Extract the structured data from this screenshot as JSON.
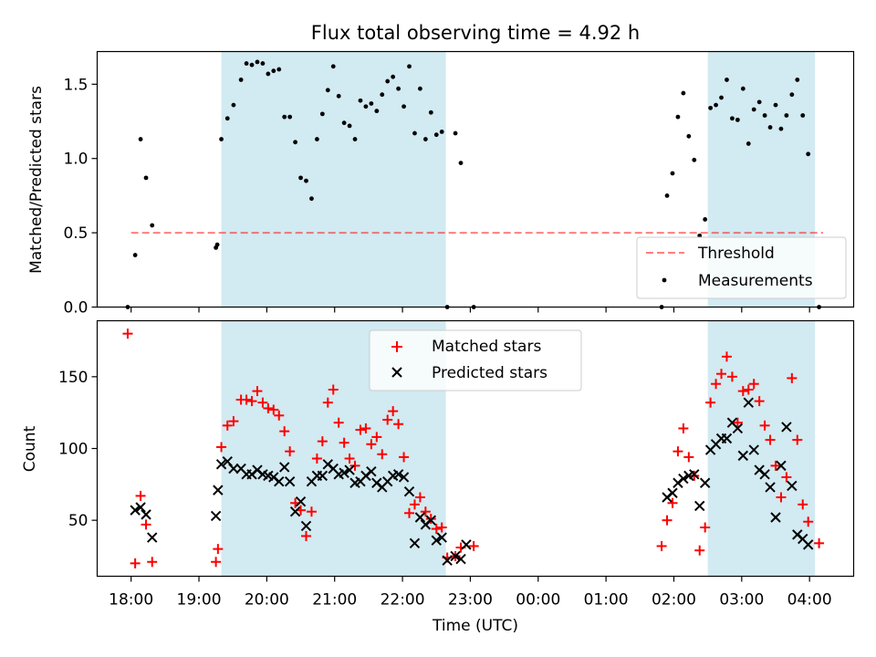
{
  "title": "Flux total observing time = 4.92 h",
  "xlabel": "Time (UTC)",
  "x_tick_labels": [
    "18:00",
    "19:00",
    "20:00",
    "21:00",
    "22:00",
    "23:00",
    "00:00",
    "01:00",
    "02:00",
    "03:00",
    "04:00"
  ],
  "colors": {
    "shade": "#add8e6",
    "threshold": "#ff0000",
    "measurements": "#000000",
    "matched": "#ff0000",
    "predicted": "#000000"
  },
  "chart_data": [
    {
      "type": "scatter",
      "ylabel": "Matched/Predicted stars",
      "ylim": [
        0,
        1.72
      ],
      "y_ticks": [
        0.0,
        0.5,
        1.0,
        1.5
      ],
      "y_tick_labels": [
        "0.0",
        "0.5",
        "1.0",
        "1.5"
      ],
      "x_unit": "hours since 18:00 UTC",
      "xlim": [
        -0.5,
        10.65
      ],
      "shaded_intervals": [
        [
          1.33,
          4.64
        ],
        [
          8.5,
          10.08
        ]
      ],
      "threshold": {
        "name": "Threshold",
        "value": 0.5,
        "x_range": [
          0.0,
          10.2
        ]
      },
      "legend": {
        "position": "lower right",
        "threshold_label": "Threshold",
        "measurements_label": "Measurements"
      },
      "series": [
        {
          "name": "Measurements",
          "points": [
            [
              -0.05,
              0.0
            ],
            [
              0.06,
              0.35
            ],
            [
              0.14,
              1.13
            ],
            [
              0.22,
              0.87
            ],
            [
              0.31,
              0.55
            ],
            [
              1.25,
              0.4
            ],
            [
              1.27,
              0.42
            ],
            [
              1.33,
              1.13
            ],
            [
              1.42,
              1.27
            ],
            [
              1.51,
              1.36
            ],
            [
              1.62,
              1.53
            ],
            [
              1.7,
              1.64
            ],
            [
              1.78,
              1.63
            ],
            [
              1.86,
              1.65
            ],
            [
              1.94,
              1.64
            ],
            [
              2.02,
              1.57
            ],
            [
              2.1,
              1.59
            ],
            [
              2.18,
              1.6
            ],
            [
              2.26,
              1.28
            ],
            [
              2.34,
              1.28
            ],
            [
              2.42,
              1.11
            ],
            [
              2.5,
              0.87
            ],
            [
              2.58,
              0.85
            ],
            [
              2.66,
              0.73
            ],
            [
              2.74,
              1.13
            ],
            [
              2.82,
              1.3
            ],
            [
              2.9,
              1.46
            ],
            [
              2.98,
              1.62
            ],
            [
              3.06,
              1.42
            ],
            [
              3.14,
              1.24
            ],
            [
              3.22,
              1.22
            ],
            [
              3.3,
              1.13
            ],
            [
              3.38,
              1.39
            ],
            [
              3.46,
              1.35
            ],
            [
              3.54,
              1.37
            ],
            [
              3.62,
              1.32
            ],
            [
              3.7,
              1.43
            ],
            [
              3.78,
              1.52
            ],
            [
              3.86,
              1.55
            ],
            [
              3.94,
              1.47
            ],
            [
              4.02,
              1.35
            ],
            [
              4.1,
              1.62
            ],
            [
              4.18,
              1.17
            ],
            [
              4.26,
              1.47
            ],
            [
              4.34,
              1.13
            ],
            [
              4.42,
              1.31
            ],
            [
              4.5,
              1.16
            ],
            [
              4.58,
              1.18
            ],
            [
              4.66,
              0.0
            ],
            [
              4.78,
              1.17
            ],
            [
              4.86,
              0.97
            ],
            [
              5.05,
              0.0
            ],
            [
              7.82,
              0.0
            ],
            [
              7.9,
              0.75
            ],
            [
              7.98,
              0.9
            ],
            [
              8.06,
              1.28
            ],
            [
              8.14,
              1.44
            ],
            [
              8.22,
              1.15
            ],
            [
              8.3,
              0.99
            ],
            [
              8.38,
              0.48
            ],
            [
              8.46,
              0.59
            ],
            [
              8.54,
              1.34
            ],
            [
              8.62,
              1.36
            ],
            [
              8.7,
              1.41
            ],
            [
              8.78,
              1.53
            ],
            [
              8.86,
              1.27
            ],
            [
              8.94,
              1.26
            ],
            [
              9.02,
              1.47
            ],
            [
              9.1,
              1.1
            ],
            [
              9.18,
              1.33
            ],
            [
              9.26,
              1.38
            ],
            [
              9.34,
              1.29
            ],
            [
              9.42,
              1.21
            ],
            [
              9.5,
              1.36
            ],
            [
              9.58,
              1.2
            ],
            [
              9.66,
              1.29
            ],
            [
              9.74,
              1.43
            ],
            [
              9.82,
              1.53
            ],
            [
              9.9,
              1.29
            ],
            [
              9.98,
              1.03
            ],
            [
              10.14,
              0.0
            ]
          ]
        }
      ]
    },
    {
      "type": "scatter",
      "ylabel": "Count",
      "ylim": [
        11,
        189
      ],
      "y_ticks": [
        50,
        100,
        150
      ],
      "y_tick_labels": [
        "50",
        "100",
        "150"
      ],
      "x_unit": "hours since 18:00 UTC",
      "xlim": [
        -0.5,
        10.65
      ],
      "shaded_intervals": [
        [
          1.33,
          4.64
        ],
        [
          8.5,
          10.08
        ]
      ],
      "legend": {
        "position": "upper center",
        "matched_label": "Matched stars",
        "predicted_label": "Predicted stars"
      },
      "series": [
        {
          "name": "Matched stars",
          "marker": "+",
          "points": [
            [
              -0.05,
              180
            ],
            [
              0.06,
              20
            ],
            [
              0.14,
              67
            ],
            [
              0.22,
              47
            ],
            [
              0.31,
              21
            ],
            [
              1.25,
              21
            ],
            [
              1.28,
              30
            ],
            [
              1.33,
              101
            ],
            [
              1.42,
              116
            ],
            [
              1.51,
              119
            ],
            [
              1.62,
              134
            ],
            [
              1.7,
              134
            ],
            [
              1.78,
              133
            ],
            [
              1.86,
              140
            ],
            [
              1.94,
              132
            ],
            [
              2.02,
              128
            ],
            [
              2.1,
              127
            ],
            [
              2.18,
              123
            ],
            [
              2.26,
              112
            ],
            [
              2.34,
              98
            ],
            [
              2.42,
              62
            ],
            [
              2.5,
              57
            ],
            [
              2.58,
              39
            ],
            [
              2.66,
              56
            ],
            [
              2.74,
              93
            ],
            [
              2.82,
              105
            ],
            [
              2.9,
              132
            ],
            [
              2.98,
              141
            ],
            [
              3.06,
              118
            ],
            [
              3.14,
              104
            ],
            [
              3.22,
              93
            ],
            [
              3.3,
              88
            ],
            [
              3.38,
              113
            ],
            [
              3.46,
              114
            ],
            [
              3.54,
              103
            ],
            [
              3.62,
              108
            ],
            [
              3.7,
              96
            ],
            [
              3.78,
              120
            ],
            [
              3.86,
              126
            ],
            [
              3.94,
              117
            ],
            [
              4.02,
              94
            ],
            [
              4.1,
              55
            ],
            [
              4.18,
              61
            ],
            [
              4.26,
              66
            ],
            [
              4.34,
              56
            ],
            [
              4.42,
              51
            ],
            [
              4.5,
              44
            ],
            [
              4.58,
              45
            ],
            [
              4.66,
              24
            ],
            [
              4.78,
              25
            ],
            [
              4.86,
              31
            ],
            [
              5.05,
              32
            ],
            [
              7.82,
              32
            ],
            [
              7.9,
              50
            ],
            [
              7.98,
              62
            ],
            [
              8.06,
              98
            ],
            [
              8.14,
              114
            ],
            [
              8.22,
              94
            ],
            [
              8.3,
              81
            ],
            [
              8.38,
              29
            ],
            [
              8.46,
              45
            ],
            [
              8.54,
              132
            ],
            [
              8.62,
              145
            ],
            [
              8.7,
              152
            ],
            [
              8.78,
              164
            ],
            [
              8.86,
              150
            ],
            [
              8.94,
              118
            ],
            [
              9.02,
              140
            ],
            [
              9.1,
              141
            ],
            [
              9.18,
              145
            ],
            [
              9.26,
              133
            ],
            [
              9.34,
              116
            ],
            [
              9.42,
              106
            ],
            [
              9.5,
              88
            ],
            [
              9.58,
              66
            ],
            [
              9.66,
              80
            ],
            [
              9.74,
              149
            ],
            [
              9.82,
              106
            ],
            [
              9.9,
              61
            ],
            [
              9.98,
              49
            ],
            [
              10.14,
              34
            ]
          ]
        },
        {
          "name": "Predicted stars",
          "marker": "x",
          "points": [
            [
              0.06,
              57
            ],
            [
              0.14,
              59
            ],
            [
              0.22,
              54
            ],
            [
              0.31,
              38
            ],
            [
              1.25,
              53
            ],
            [
              1.28,
              71
            ],
            [
              1.33,
              89
            ],
            [
              1.42,
              91
            ],
            [
              1.51,
              86
            ],
            [
              1.62,
              86
            ],
            [
              1.7,
              82
            ],
            [
              1.78,
              82
            ],
            [
              1.86,
              85
            ],
            [
              1.94,
              82
            ],
            [
              2.02,
              81
            ],
            [
              2.1,
              80
            ],
            [
              2.18,
              77
            ],
            [
              2.26,
              87
            ],
            [
              2.34,
              77
            ],
            [
              2.42,
              56
            ],
            [
              2.5,
              63
            ],
            [
              2.58,
              46
            ],
            [
              2.66,
              77
            ],
            [
              2.74,
              81
            ],
            [
              2.82,
              81
            ],
            [
              2.9,
              89
            ],
            [
              2.98,
              86
            ],
            [
              3.06,
              82
            ],
            [
              3.14,
              83
            ],
            [
              3.22,
              85
            ],
            [
              3.3,
              76
            ],
            [
              3.38,
              77
            ],
            [
              3.46,
              81
            ],
            [
              3.54,
              84
            ],
            [
              3.62,
              76
            ],
            [
              3.7,
              73
            ],
            [
              3.78,
              77
            ],
            [
              3.86,
              81
            ],
            [
              3.94,
              82
            ],
            [
              4.02,
              80
            ],
            [
              4.1,
              70
            ],
            [
              4.18,
              34
            ],
            [
              4.26,
              52
            ],
            [
              4.34,
              47
            ],
            [
              4.42,
              50
            ],
            [
              4.5,
              36
            ],
            [
              4.58,
              38
            ],
            [
              4.66,
              22
            ],
            [
              4.78,
              25
            ],
            [
              4.86,
              23
            ],
            [
              4.94,
              33
            ],
            [
              7.9,
              66
            ],
            [
              7.98,
              69
            ],
            [
              8.06,
              76
            ],
            [
              8.14,
              79
            ],
            [
              8.22,
              81
            ],
            [
              8.3,
              82
            ],
            [
              8.38,
              60
            ],
            [
              8.46,
              76
            ],
            [
              8.54,
              99
            ],
            [
              8.62,
              103
            ],
            [
              8.7,
              107
            ],
            [
              8.78,
              107
            ],
            [
              8.86,
              118
            ],
            [
              8.94,
              114
            ],
            [
              9.02,
              95
            ],
            [
              9.1,
              132
            ],
            [
              9.18,
              99
            ],
            [
              9.26,
              85
            ],
            [
              9.34,
              82
            ],
            [
              9.42,
              73
            ],
            [
              9.5,
              52
            ],
            [
              9.58,
              88
            ],
            [
              9.66,
              115
            ],
            [
              9.74,
              74
            ],
            [
              9.82,
              40
            ],
            [
              9.9,
              37
            ],
            [
              9.98,
              33
            ]
          ]
        }
      ]
    }
  ]
}
